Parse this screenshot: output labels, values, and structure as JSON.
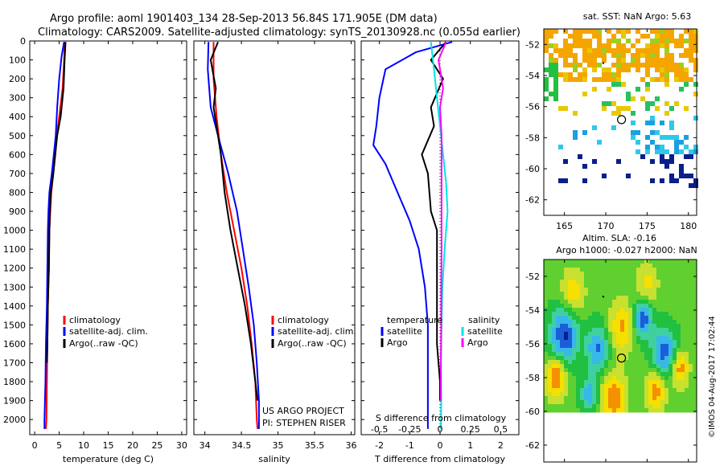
{
  "header": {
    "line1": "Argo profile: aoml 1901403_134 28-Sep-2013 56.84S 171.905E (DM data)",
    "line2": "Climatology: CARS2009. Satellite-adjusted climatology: synTS_20130928.nc (0.055d earlier)"
  },
  "footer_credit": "©IMOS 04-Aug-2017 17:02:44",
  "colors": {
    "climatology": "#ff0000",
    "satellite": "#0000ff",
    "argo": "#000000",
    "sal_satellite": "#00e5e5",
    "sal_argo": "#ff00ff"
  },
  "chart_data": [
    {
      "id": "temperature",
      "type": "line",
      "xlabel": "temperature (deg C)",
      "ylabel": "",
      "xlim": [
        -1,
        31
      ],
      "ylim": [
        2080,
        0
      ],
      "xticks": [
        0,
        5,
        10,
        15,
        20,
        25,
        30
      ],
      "yticks": [
        0,
        100,
        200,
        300,
        400,
        500,
        600,
        700,
        800,
        900,
        1000,
        1100,
        1200,
        1300,
        1400,
        1500,
        1600,
        1700,
        1800,
        1900,
        2000
      ],
      "legend": [
        "climatology",
        "satellite-adj. clim.",
        "Argo(..raw -QC)"
      ],
      "series": [
        {
          "name": "climatology",
          "color": "#ff0000",
          "points": [
            [
              6.1,
              5
            ],
            [
              6.0,
              100
            ],
            [
              5.7,
              250
            ],
            [
              5.0,
              400
            ],
            [
              4.5,
              500
            ],
            [
              4.2,
              600
            ],
            [
              3.8,
              700
            ],
            [
              3.4,
              800
            ],
            [
              3.2,
              900
            ],
            [
              3.0,
              1000
            ],
            [
              2.9,
              1200
            ],
            [
              2.7,
              1400
            ],
            [
              2.6,
              1600
            ],
            [
              2.5,
              1800
            ],
            [
              2.4,
              2000
            ],
            [
              2.3,
              2050
            ]
          ]
        },
        {
          "name": "satellite-adj. clim.",
          "color": "#0000ff",
          "points": [
            [
              6.0,
              5
            ],
            [
              5.5,
              80
            ],
            [
              5.0,
              200
            ],
            [
              4.6,
              350
            ],
            [
              4.3,
              500
            ],
            [
              3.9,
              600
            ],
            [
              3.5,
              700
            ],
            [
              3.0,
              800
            ],
            [
              2.8,
              900
            ],
            [
              2.7,
              1000
            ],
            [
              2.6,
              1200
            ],
            [
              2.5,
              1400
            ],
            [
              2.3,
              1600
            ],
            [
              2.2,
              1800
            ],
            [
              2.0,
              2000
            ],
            [
              2.0,
              2050
            ]
          ]
        },
        {
          "name": "Argo(..raw -QC)",
          "color": "#000000",
          "points": [
            [
              6.3,
              5
            ],
            [
              6.1,
              100
            ],
            [
              5.9,
              250
            ],
            [
              5.3,
              400
            ],
            [
              4.6,
              500
            ],
            [
              4.2,
              600
            ],
            [
              3.8,
              700
            ],
            [
              3.3,
              800
            ],
            [
              3.1,
              900
            ],
            [
              3.0,
              1000
            ],
            [
              2.9,
              1200
            ],
            [
              2.7,
              1400
            ],
            [
              2.6,
              1600
            ],
            [
              2.5,
              1700
            ]
          ]
        }
      ]
    },
    {
      "id": "salinity",
      "type": "line",
      "xlabel": "salinity",
      "xlim": [
        33.85,
        36.05
      ],
      "ylim": [
        2080,
        0
      ],
      "xticks": [
        34,
        34.5,
        35,
        35.5,
        36
      ],
      "legend": [
        "climatology",
        "satellite-adj. clim.",
        "Argo(..raw -QC)"
      ],
      "annotation": [
        "US ARGO PROJECT",
        "PI: STEPHEN RISER"
      ],
      "series": [
        {
          "name": "climatology",
          "color": "#ff0000",
          "points": [
            [
              34.12,
              5
            ],
            [
              34.12,
              200
            ],
            [
              34.16,
              400
            ],
            [
              34.22,
              600
            ],
            [
              34.3,
              800
            ],
            [
              34.4,
              1000
            ],
            [
              34.5,
              1200
            ],
            [
              34.58,
              1400
            ],
            [
              34.64,
              1600
            ],
            [
              34.69,
              1800
            ],
            [
              34.71,
              2000
            ],
            [
              34.72,
              2050
            ]
          ]
        },
        {
          "name": "satellite-adj. clim.",
          "color": "#0000ff",
          "points": [
            [
              34.05,
              5
            ],
            [
              34.04,
              150
            ],
            [
              34.08,
              350
            ],
            [
              34.18,
              500
            ],
            [
              34.32,
              700
            ],
            [
              34.44,
              900
            ],
            [
              34.52,
              1100
            ],
            [
              34.6,
              1300
            ],
            [
              34.67,
              1500
            ],
            [
              34.71,
              1700
            ],
            [
              34.74,
              1900
            ],
            [
              34.74,
              2050
            ]
          ]
        },
        {
          "name": "Argo(..raw -QC)",
          "color": "#000000",
          "points": [
            [
              34.18,
              5
            ],
            [
              34.08,
              100
            ],
            [
              34.15,
              250
            ],
            [
              34.12,
              350
            ],
            [
              34.18,
              500
            ],
            [
              34.22,
              600
            ],
            [
              34.27,
              800
            ],
            [
              34.35,
              1000
            ],
            [
              34.45,
              1200
            ],
            [
              34.55,
              1400
            ],
            [
              34.63,
              1600
            ],
            [
              34.69,
              1800
            ],
            [
              34.72,
              1900
            ]
          ]
        }
      ]
    },
    {
      "id": "difference",
      "type": "line",
      "xlabel": "T difference from climatology",
      "xlabel2": "S difference from climatology",
      "xlim": [
        -2.6,
        2.6
      ],
      "ylim": [
        2080,
        0
      ],
      "xticks": [
        -2,
        -1,
        0,
        1,
        2
      ],
      "xtick_labels": [
        "-2",
        "-1",
        "0",
        "1",
        "2"
      ],
      "sticks": [
        -0.5,
        -0.25,
        0,
        0.25,
        0.5
      ],
      "stick_labels": [
        "-0.5",
        "-0.25",
        "0",
        "0.25",
        "0.5"
      ],
      "legend_temperature": [
        "temperature",
        "satellite",
        "Argo"
      ],
      "legend_salinity": [
        "salinity",
        "satellite",
        "Argo"
      ],
      "series": [
        {
          "name": "T satellite",
          "color": "#0000ff",
          "points": [
            [
              0.4,
              5
            ],
            [
              -0.8,
              60
            ],
            [
              -1.8,
              150
            ],
            [
              -2.0,
              300
            ],
            [
              -2.1,
              450
            ],
            [
              -2.2,
              550
            ],
            [
              -1.8,
              650
            ],
            [
              -1.4,
              800
            ],
            [
              -1.0,
              950
            ],
            [
              -0.7,
              1100
            ],
            [
              -0.5,
              1300
            ],
            [
              -0.4,
              1500
            ],
            [
              -0.4,
              1700
            ],
            [
              -0.4,
              1900
            ],
            [
              -0.4,
              2050
            ]
          ]
        },
        {
          "name": "T Argo",
          "color": "#000000",
          "points": [
            [
              0.2,
              5
            ],
            [
              -0.3,
              100
            ],
            [
              0.1,
              200
            ],
            [
              -0.3,
              350
            ],
            [
              -0.2,
              450
            ],
            [
              -0.6,
              600
            ],
            [
              -0.4,
              700
            ],
            [
              -0.3,
              900
            ],
            [
              -0.1,
              1000
            ],
            [
              -0.1,
              1200
            ],
            [
              -0.1,
              1400
            ],
            [
              -0.1,
              1600
            ],
            [
              0.0,
              1800
            ],
            [
              0.0,
              1900
            ]
          ]
        },
        {
          "name": "S satellite",
          "color": "#00e5e5",
          "points": [
            [
              -0.3,
              5
            ],
            [
              -0.2,
              150
            ],
            [
              -0.1,
              300
            ],
            [
              0.0,
              450
            ],
            [
              0.1,
              600
            ],
            [
              0.2,
              750
            ],
            [
              0.25,
              900
            ],
            [
              0.15,
              1100
            ],
            [
              0.08,
              1300
            ],
            [
              0.05,
              1500
            ],
            [
              0.03,
              1700
            ],
            [
              0.04,
              1900
            ],
            [
              0.03,
              2050
            ]
          ]
        },
        {
          "name": "S Argo",
          "color": "#ff00ff",
          "points": [
            [
              0.2,
              5
            ],
            [
              -0.05,
              100
            ],
            [
              0.1,
              250
            ],
            [
              0.0,
              350
            ],
            [
              0.05,
              500
            ],
            [
              0.05,
              700
            ],
            [
              0.05,
              900
            ],
            [
              0.05,
              1100
            ],
            [
              0.04,
              1300
            ],
            [
              0.04,
              1500
            ],
            [
              0.03,
              1700
            ],
            [
              0.03,
              1900
            ]
          ]
        }
      ]
    },
    {
      "id": "sst_map",
      "type": "heatmap",
      "title": "sat. SST: NaN Argo: 5.63",
      "xlim": [
        162.5,
        181
      ],
      "ylim": [
        -63,
        -51
      ],
      "xticks": [
        165,
        170,
        175,
        180
      ],
      "yticks": [
        -52,
        -54,
        -56,
        -58,
        -60,
        -62
      ],
      "float_position": [
        171.905,
        -56.84
      ]
    },
    {
      "id": "sla_map",
      "type": "heatmap",
      "title": "Altim. SLA: -0.16",
      "subtitle": "Argo h1000: -0.027 h2000: NaN",
      "xlim": [
        162.5,
        181
      ],
      "ylim": [
        -63,
        -51
      ],
      "xticks": [
        165,
        170,
        175,
        180
      ],
      "yticks": [
        -52,
        -54,
        -56,
        -58,
        -60,
        -62
      ],
      "float_position": [
        171.905,
        -56.84
      ]
    }
  ]
}
